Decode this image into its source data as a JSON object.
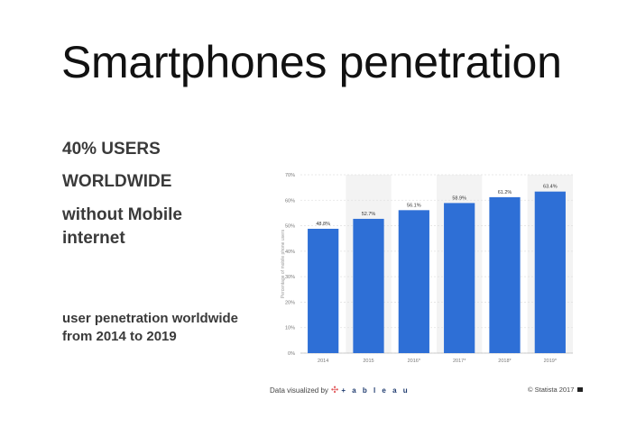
{
  "title": "Smartphones penetration",
  "bullets": [
    "40% USERS",
    "WORLDWIDE",
    "without Mobile internet"
  ],
  "caption": "user penetration worldwide from 2014 to 2019",
  "footer": {
    "left_text": "Data visualized by",
    "logo_text": "+ a b l e a u",
    "right_text": "© Statista 2017"
  },
  "colors": {
    "bar": "#2e6fd6",
    "forecast_band": "#f3f3f3",
    "grid": "#e2e2e2"
  },
  "chart_data": {
    "type": "bar",
    "categories": [
      "2014",
      "2015",
      "2016*",
      "2017*",
      "2018*",
      "2019*"
    ],
    "values": [
      48.8,
      52.7,
      56.1,
      58.9,
      61.2,
      63.4
    ],
    "value_labels": [
      "48.8%",
      "52.7%",
      "56.1%",
      "58.9%",
      "61.2%",
      "63.4%"
    ],
    "ylabel": "Percentage of mobile phone users",
    "ylim": [
      0,
      70
    ],
    "yticks": [
      0,
      10,
      20,
      30,
      40,
      50,
      60,
      70
    ],
    "ytick_labels": [
      "0%",
      "10%",
      "20%",
      "30%",
      "40%",
      "50%",
      "60%",
      "70%"
    ],
    "grid": true,
    "legend": "none"
  }
}
